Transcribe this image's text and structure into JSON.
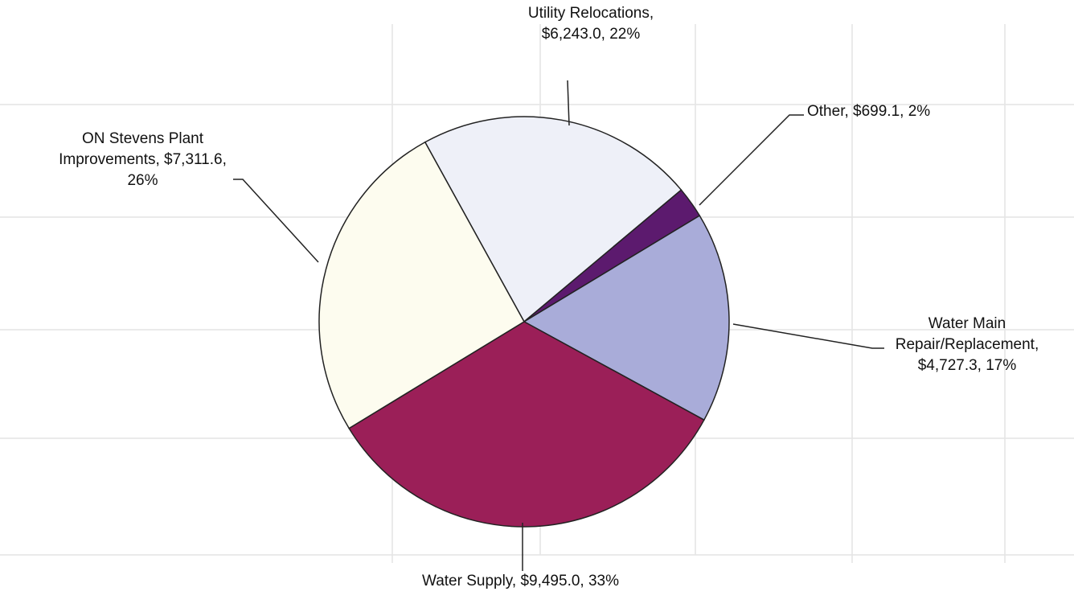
{
  "chart_data": {
    "type": "pie",
    "values": [
      6243.0,
      699.1,
      4727.3,
      9495.0,
      7311.6
    ],
    "value_labels": [
      "Utility Relocations, $6,243.0, 22%",
      "Other,  $699.1, 2%",
      "Water Main Repair/Replacement, $4,727.3, 17%",
      "Water Supply,  $9,495.0, 33%",
      "ON Stevens Plant Improvements,  $7,311.6, 26%"
    ],
    "colors": [
      "#eef0f8",
      "#5c1a6e",
      "#a9acd9",
      "#9b1f58",
      "#fdfcef"
    ],
    "start_angle": -28.9
  }
}
